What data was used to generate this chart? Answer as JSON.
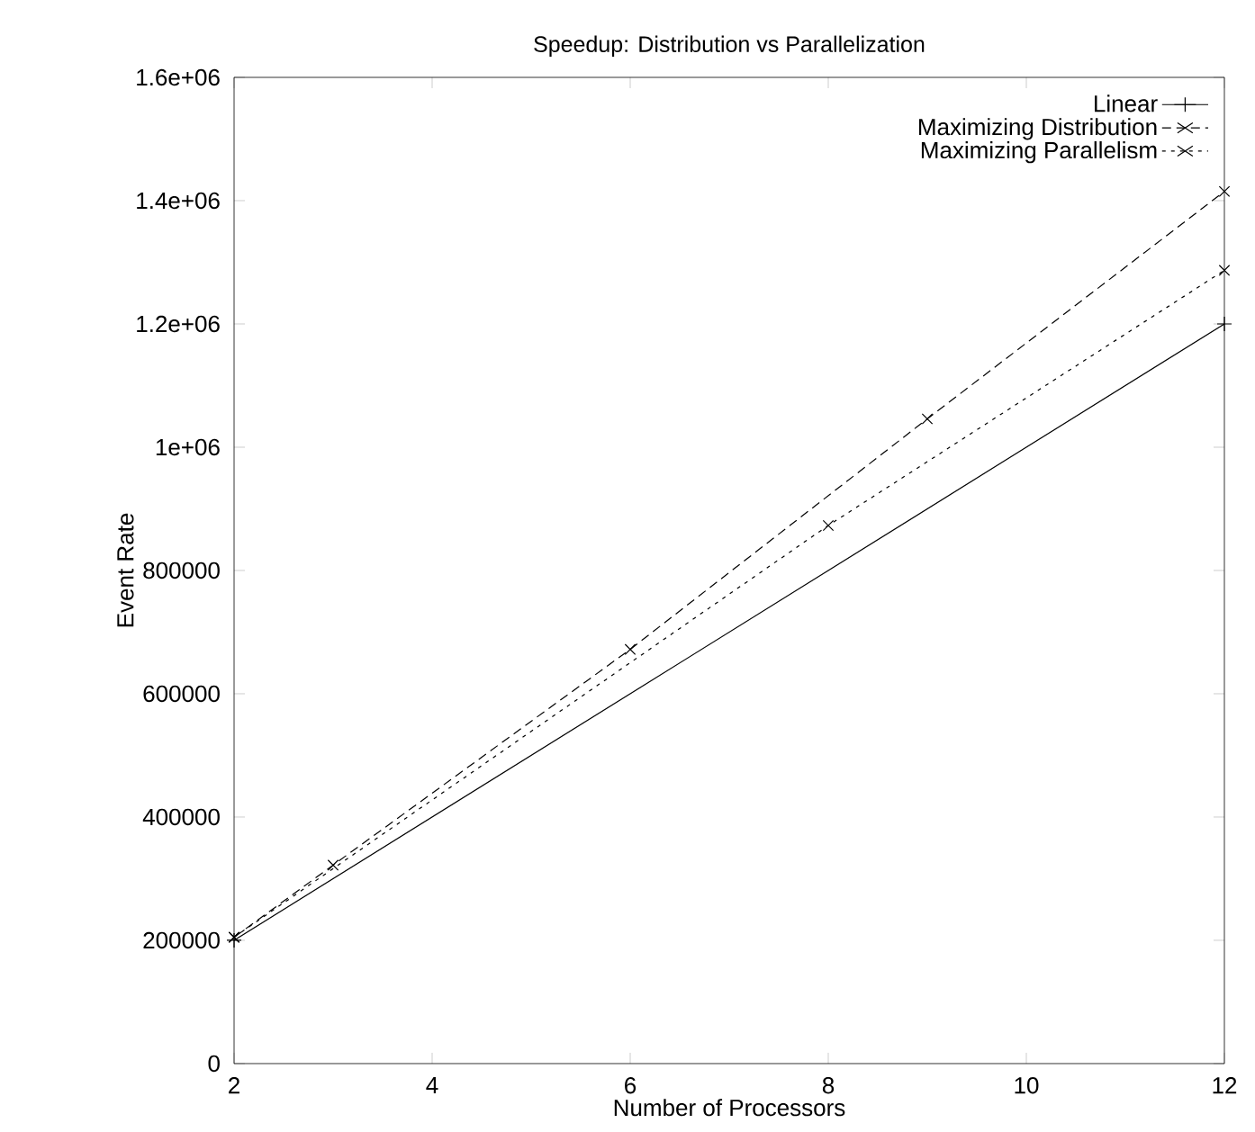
{
  "chart_data": {
    "type": "line",
    "title": "Speedup:  Distribution vs Parallelization",
    "xlabel": "Number of Processors",
    "ylabel": "Event Rate",
    "xlim": [
      2,
      12
    ],
    "xticks": [
      2,
      4,
      6,
      8,
      10,
      12
    ],
    "ylim": [
      0,
      1600000
    ],
    "yticks": [
      0,
      200000,
      400000,
      600000,
      800000,
      {
        "value": 1000000,
        "label": "1e+06"
      },
      {
        "value": 1200000,
        "label": "1.2e+06"
      },
      {
        "value": 1400000,
        "label": "1.4e+06"
      },
      {
        "value": 1600000,
        "label": "1.6e+06"
      }
    ],
    "grid": false,
    "legend": "top right",
    "series": [
      {
        "name": "Linear",
        "color": "#000000",
        "marker": "plus",
        "line_style": "solid",
        "x": [
          2,
          12
        ],
        "values": [
          200000,
          1200000
        ]
      },
      {
        "name": "Maximizing Distribution",
        "color": "#000000",
        "marker": "cross",
        "line_style": "dashed",
        "x": [
          2,
          3,
          6,
          9,
          12
        ],
        "values": [
          205000,
          322000,
          672000,
          1046000,
          1415000
        ]
      },
      {
        "name": "Maximizing Parallelism",
        "color": "#000000",
        "marker": "cross",
        "line_style": "dotted",
        "x": [
          2,
          8,
          12
        ],
        "values": [
          205000,
          873000,
          1287000
        ]
      }
    ]
  }
}
